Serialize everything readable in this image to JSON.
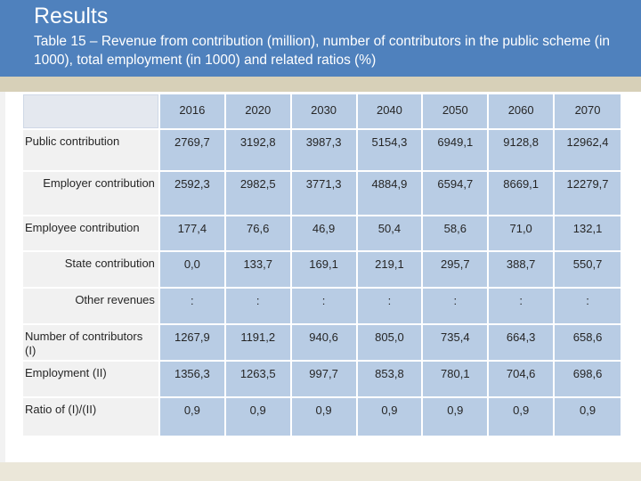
{
  "header": {
    "title": "Results",
    "subtitle": "Table 15 – Revenue from contribution (million), number of contributors in the public scheme (in 1000), total employment (in 1000) and related ratios (%)"
  },
  "table": {
    "years": [
      "2016",
      "2020",
      "2030",
      "2040",
      "2050",
      "2060",
      "2070"
    ],
    "rows": [
      {
        "label": "Public contribution",
        "values": [
          "2769,7",
          "3192,8",
          "3987,3",
          "5154,3",
          "6949,1",
          "9128,8",
          "12962,4"
        ]
      },
      {
        "label": "Employer contribution",
        "values": [
          "2592,3",
          "2982,5",
          "3771,3",
          "4884,9",
          "6594,7",
          "8669,1",
          "12279,7"
        ]
      },
      {
        "label": "Employee contribution",
        "values": [
          "177,4",
          "76,6",
          "46,9",
          "50,4",
          "58,6",
          "71,0",
          "132,1"
        ]
      },
      {
        "label": "State contribution",
        "values": [
          "0,0",
          "133,7",
          "169,1",
          "219,1",
          "295,7",
          "388,7",
          "550,7"
        ]
      },
      {
        "label": "Other revenues",
        "values": [
          ":",
          ":",
          ":",
          ":",
          ":",
          ":",
          ":"
        ]
      },
      {
        "label": "Number of contributors (I)",
        "values": [
          "1267,9",
          "1191,2",
          "940,6",
          "805,0",
          "735,4",
          "664,3",
          "658,6"
        ]
      },
      {
        "label": "Employment (II)",
        "values": [
          "1356,3",
          "1263,5",
          "997,7",
          "853,8",
          "780,1",
          "704,6",
          "698,6"
        ]
      },
      {
        "label": "Ratio of (I)/(II)",
        "values": [
          "0,9",
          "0,9",
          "0,9",
          "0,9",
          "0,9",
          "0,9",
          "0,9"
        ]
      }
    ]
  }
}
